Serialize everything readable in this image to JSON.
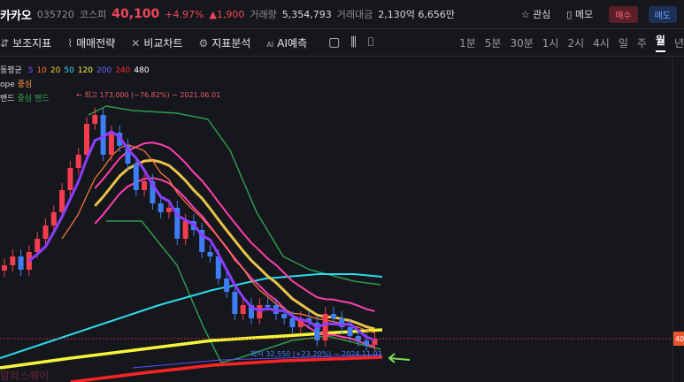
{
  "header": {
    "name": "카카오",
    "code": "035720",
    "market": "코스피",
    "price": "40,100",
    "change_pct": "+4.97%",
    "change": "▲1,900",
    "volume_label": "거래량",
    "volume": "5,354,793",
    "amount_label": "거래대금",
    "amount": "2,130억 6,656만",
    "watch": "관심",
    "memo": "메모",
    "buy": "매수",
    "sell": "매도"
  },
  "toolbar": {
    "tools": [
      "보조지표",
      "매매전략",
      "비교차트",
      "지표분석",
      "AI예측"
    ],
    "periods": [
      "1분",
      "5분",
      "30분",
      "1시",
      "2시",
      "4시",
      "일",
      "주",
      "월",
      "년"
    ],
    "selected_period": "월"
  },
  "legend": {
    "ma_label": "동평균",
    "ma_periods": [
      "5",
      "10",
      "20",
      "50",
      "120",
      "200",
      "240",
      "480"
    ],
    "envelope_label": "ope",
    "envelope_center": "중심",
    "band_label": "밴드",
    "band_center": "중심",
    "band_band": "밴드"
  },
  "annotations": {
    "high": "← 최고 173,000 (−76.82%) − 2021.06.01",
    "low": "최저 32,550 (+23.20%) − 2024.11.01"
  },
  "price_tag": "40",
  "watermark": "알파스퀘어"
}
